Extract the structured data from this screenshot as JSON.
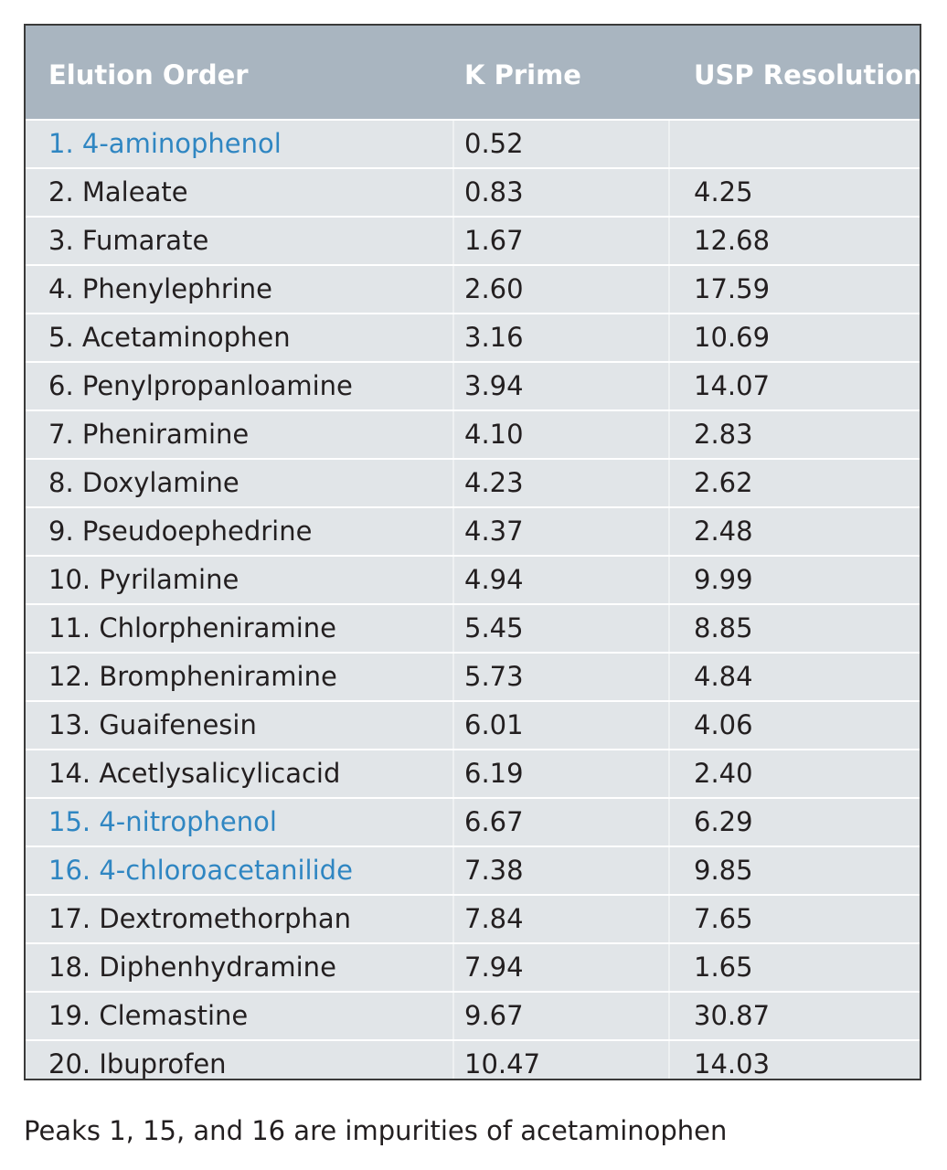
{
  "table": {
    "headers": {
      "name": "Elution Order",
      "k_prime": "K Prime",
      "usp_resolution": "USP Resolution"
    },
    "highlight_color": "#2f86c2",
    "header_color": "#a9b5c0",
    "row_color": "#e1e5e8",
    "rows": [
      {
        "name": "1. 4-aminophenol",
        "k_prime": "0.52",
        "usp_resolution": "",
        "highlight": true
      },
      {
        "name": "2. Maleate",
        "k_prime": "0.83",
        "usp_resolution": "4.25",
        "highlight": false
      },
      {
        "name": "3. Fumarate",
        "k_prime": "1.67",
        "usp_resolution": "12.68",
        "highlight": false
      },
      {
        "name": "4. Phenylephrine",
        "k_prime": "2.60",
        "usp_resolution": "17.59",
        "highlight": false
      },
      {
        "name": "5. Acetaminophen",
        "k_prime": "3.16",
        "usp_resolution": "10.69",
        "highlight": false
      },
      {
        "name": "6. Penylpropanloamine",
        "k_prime": "3.94",
        "usp_resolution": "14.07",
        "highlight": false
      },
      {
        "name": "7. Pheniramine",
        "k_prime": "4.10",
        "usp_resolution": "2.83",
        "highlight": false
      },
      {
        "name": "8. Doxylamine",
        "k_prime": "4.23",
        "usp_resolution": "2.62",
        "highlight": false
      },
      {
        "name": "9. Pseudoephedrine",
        "k_prime": "4.37",
        "usp_resolution": "2.48",
        "highlight": false
      },
      {
        "name": "10. Pyrilamine",
        "k_prime": "4.94",
        "usp_resolution": "9.99",
        "highlight": false
      },
      {
        "name": "11. Chlorpheniramine",
        "k_prime": "5.45",
        "usp_resolution": "8.85",
        "highlight": false
      },
      {
        "name": "12. Brompheniramine",
        "k_prime": "5.73",
        "usp_resolution": "4.84",
        "highlight": false
      },
      {
        "name": "13. Guaifenesin",
        "k_prime": "6.01",
        "usp_resolution": "4.06",
        "highlight": false
      },
      {
        "name": "14. Acetlysalicylicacid",
        "k_prime": "6.19",
        "usp_resolution": "2.40",
        "highlight": false
      },
      {
        "name": "15. 4-nitrophenol",
        "k_prime": "6.67",
        "usp_resolution": "6.29",
        "highlight": true
      },
      {
        "name": "16. 4-chloroacetanilide",
        "k_prime": "7.38",
        "usp_resolution": "9.85",
        "highlight": true
      },
      {
        "name": "17. Dextromethorphan",
        "k_prime": "7.84",
        "usp_resolution": "7.65",
        "highlight": false
      },
      {
        "name": "18. Diphenhydramine",
        "k_prime": "7.94",
        "usp_resolution": "1.65",
        "highlight": false
      },
      {
        "name": "19. Clemastine",
        "k_prime": "9.67",
        "usp_resolution": "30.87",
        "highlight": false
      },
      {
        "name": "20. Ibuprofen",
        "k_prime": "10.47",
        "usp_resolution": "14.03",
        "highlight": false
      }
    ]
  },
  "footnote": "Peaks 1, 15, and 16 are impurities of acetaminophen"
}
